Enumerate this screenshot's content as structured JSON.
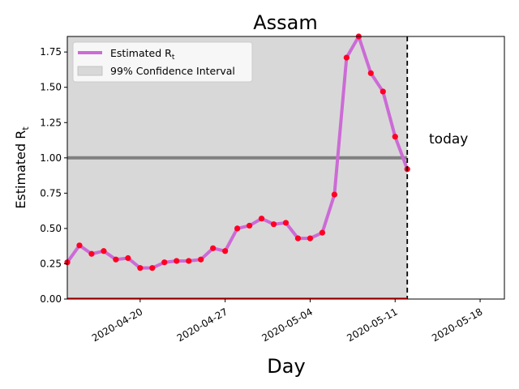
{
  "chart_data": {
    "type": "line",
    "title": "Assam",
    "xlabel": "Day",
    "ylabel": "Estimated R",
    "ylabel_sub": "t",
    "x": [
      "2020-04-14",
      "2020-04-15",
      "2020-04-16",
      "2020-04-17",
      "2020-04-18",
      "2020-04-19",
      "2020-04-20",
      "2020-04-21",
      "2020-04-22",
      "2020-04-23",
      "2020-04-24",
      "2020-04-25",
      "2020-04-26",
      "2020-04-27",
      "2020-04-28",
      "2020-04-29",
      "2020-04-30",
      "2020-05-01",
      "2020-05-02",
      "2020-05-03",
      "2020-05-04",
      "2020-05-05",
      "2020-05-06",
      "2020-05-07",
      "2020-05-08",
      "2020-05-09",
      "2020-05-10",
      "2020-05-11",
      "2020-05-12"
    ],
    "series": [
      {
        "name": "Estimated R",
        "name_sub": "t",
        "color": "#cc6bd6",
        "point_color": "#ff0022",
        "values": [
          0.26,
          0.38,
          0.32,
          0.34,
          0.28,
          0.29,
          0.22,
          0.22,
          0.26,
          0.27,
          0.27,
          0.28,
          0.36,
          0.34,
          0.5,
          0.52,
          0.57,
          0.53,
          0.54,
          0.43,
          0.43,
          0.47,
          0.74,
          1.71,
          1.86,
          1.6,
          1.47,
          1.15,
          0.92
        ]
      }
    ],
    "confidence_interval": {
      "name": "99% Confidence Interval",
      "lower": 0.0,
      "upper": 1.86,
      "color": "#d8d8d8"
    },
    "reference_line": {
      "y": 1.0,
      "color": "#808080"
    },
    "today_line": {
      "x": "2020-05-12",
      "label": "today"
    },
    "xticks": [
      "2020-04-20",
      "2020-04-27",
      "2020-05-04",
      "2020-05-11",
      "2020-05-18"
    ],
    "yticks": [
      "0.00",
      "0.25",
      "0.50",
      "0.75",
      "1.00",
      "1.25",
      "1.50",
      "1.75"
    ],
    "xlim": [
      "2020-04-14",
      "2020-05-20"
    ],
    "ylim": [
      0,
      1.86
    ],
    "legend_position": "upper-left",
    "grid": false
  }
}
